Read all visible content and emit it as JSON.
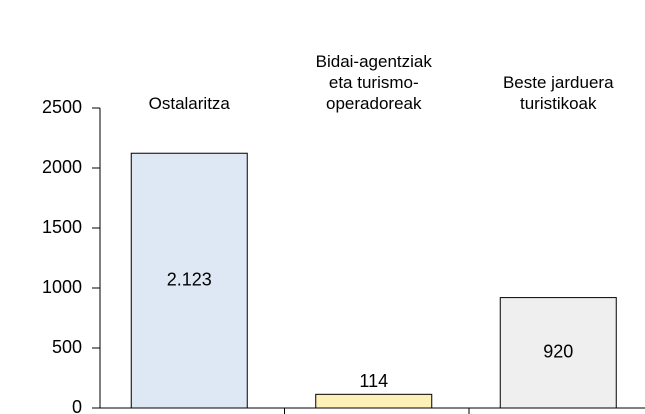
{
  "chart_data": {
    "type": "bar",
    "categories": [
      "Ostalaritza",
      "Bidai-agentziak\neta turismo-\noperadoreak",
      "Beste jarduera\nturistikoak"
    ],
    "values": [
      2123,
      114,
      920
    ],
    "value_labels": [
      "2.123",
      "114",
      "920"
    ],
    "colors": [
      "#dde8f4",
      "#fdf0b8",
      "#efefef"
    ],
    "ylim": [
      0,
      2500
    ],
    "yticks": [
      0,
      500,
      1000,
      1500,
      2000,
      2500
    ],
    "grid": false
  }
}
